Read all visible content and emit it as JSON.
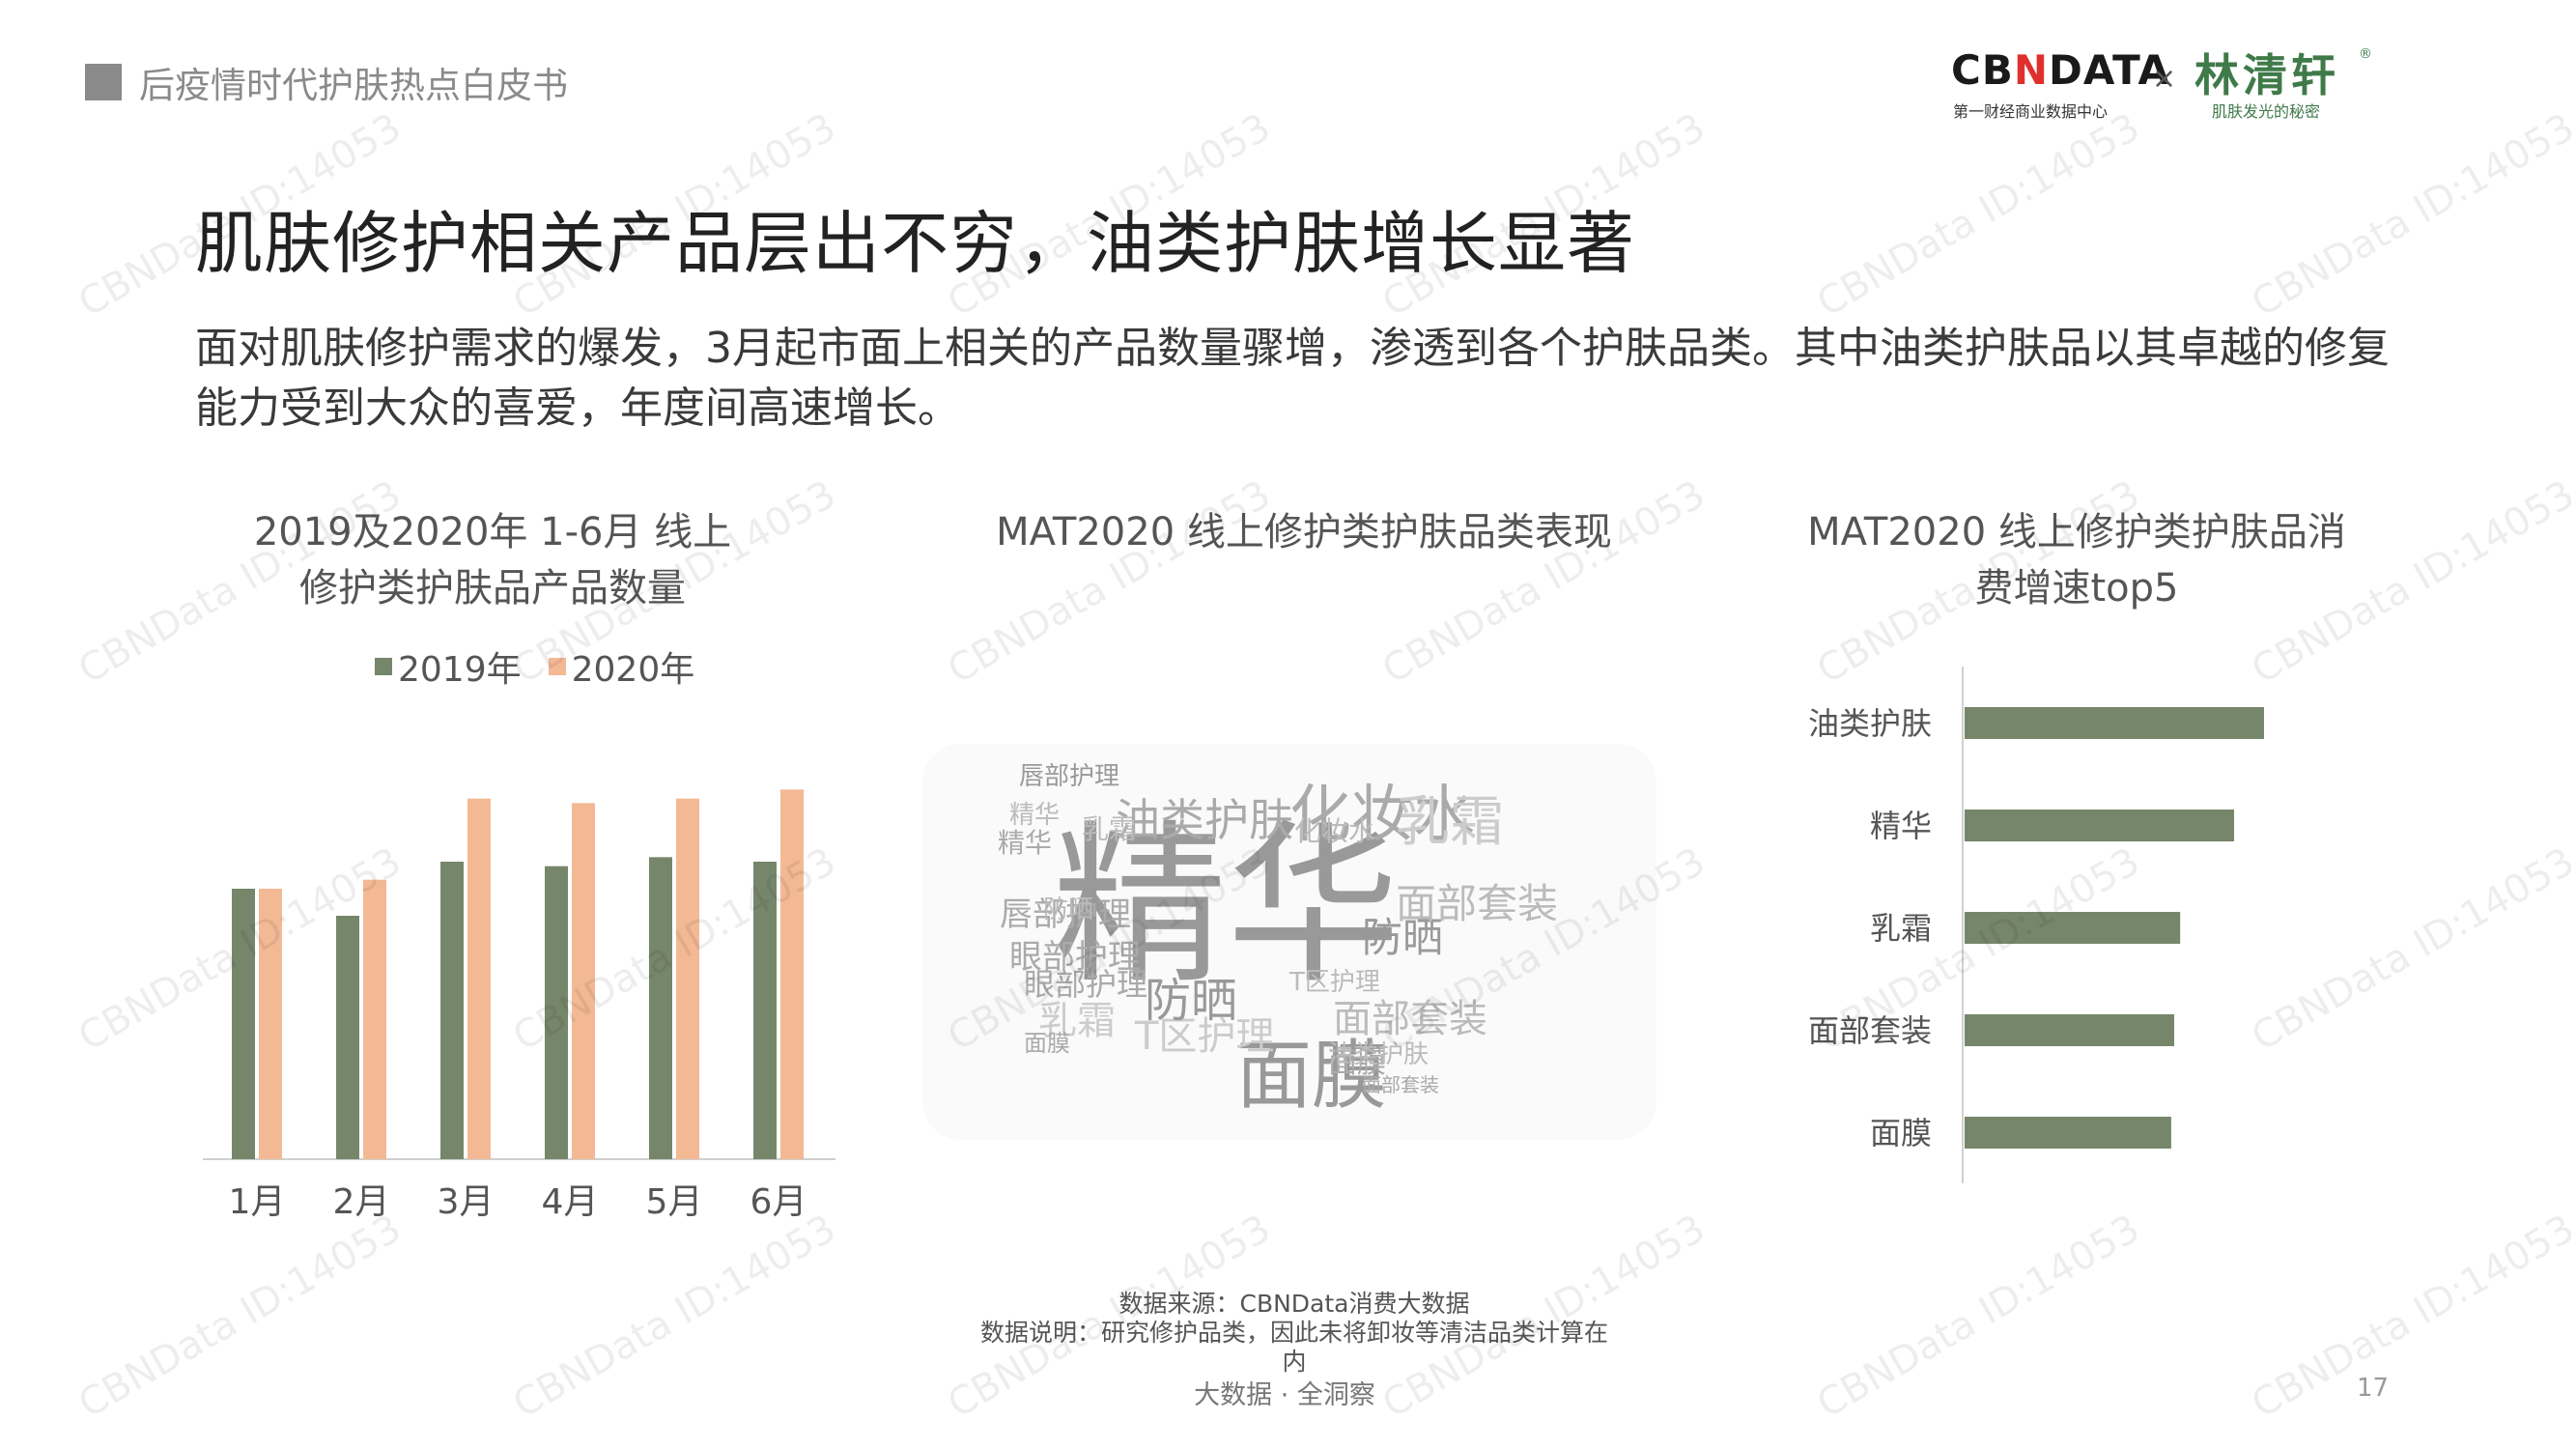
{
  "header": {
    "tag": "后疫情时代护肤热点白皮书"
  },
  "logos": {
    "cbn_main_pre": "CB",
    "cbn_main_n": "N",
    "cbn_main_post": "DATA",
    "cbn_sub": "第一财经商业数据中心",
    "x": "×",
    "lin_main": "林清轩",
    "lin_sub": "肌肤发光的秘密",
    "reg": "®"
  },
  "title": "肌肤修护相关产品层出不穷，油类护肤增长显著",
  "description": "面对肌肤修护需求的爆发，3月起市面上相关的产品数量骤增，渗透到各个护肤品类。其中油类护肤品以其卓越的修复能力受到大众的喜爱，年度间高速增长。",
  "colors": {
    "green": "#76866a",
    "peach": "#f3b995",
    "axis": "#d0d0d0"
  },
  "chart_data": [
    {
      "type": "bar",
      "title_line1": "2019及2020年 1-6月 线上",
      "title_line2": "修护类护肤品产品数量",
      "categories": [
        "1月",
        "2月",
        "3月",
        "4月",
        "5月",
        "6月"
      ],
      "series": [
        {
          "name": "2019年",
          "values": [
            60,
            54,
            66,
            65,
            67,
            66
          ]
        },
        {
          "name": "2020年",
          "values": [
            60,
            62,
            80,
            79,
            80,
            82
          ]
        }
      ],
      "legend": "top",
      "grid": false
    },
    {
      "type": "wordcloud",
      "title": "MAT2020 线上修护类护肤品类表现",
      "words": [
        "精华",
        "面膜",
        "化妆水",
        "油类护肤",
        "乳霜",
        "防晒",
        "面部套装",
        "唇部护理",
        "眼部护理",
        "T区护理",
        "精华",
        "乳霜",
        "防晒",
        "面膜",
        "化妆水",
        "唇部护理",
        "面部套装",
        "眼部护理",
        "T区护理",
        "油类护肤",
        "精华",
        "乳霜",
        "防晒",
        "面膜",
        "面部套装"
      ]
    },
    {
      "type": "bar",
      "orientation": "horizontal",
      "title_line1": "MAT2020 线上修护类护肤品消",
      "title_line2": "费增速top5",
      "categories": [
        "油类护肤",
        "精华",
        "乳霜",
        "面部套装",
        "面膜"
      ],
      "values": [
        100,
        90,
        72,
        70,
        69
      ],
      "grid": false
    }
  ],
  "footnote": {
    "line1": "数据来源：CBNData消费大数据",
    "line2": "数据说明：研究修护品类，因此未将卸妆等清洁品类计算在",
    "line3": "内"
  },
  "footer": {
    "tagline": "大数据 · 全洞察",
    "page": "17"
  },
  "watermark": "CBNData ID:14053"
}
